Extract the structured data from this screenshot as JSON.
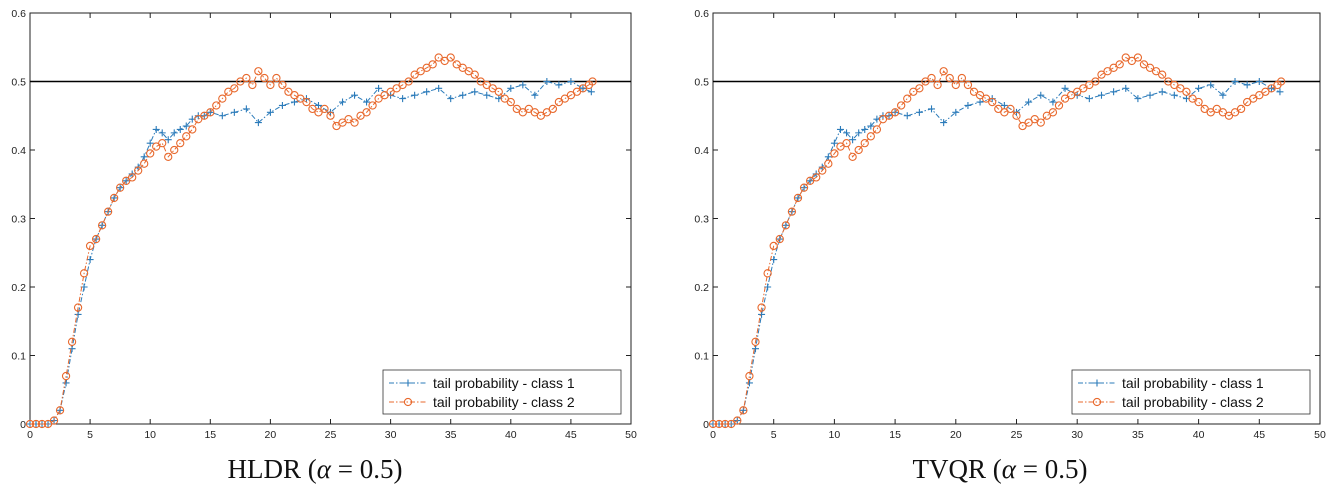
{
  "colors": {
    "class1": "#2b7bba",
    "class2": "#e8682c",
    "reference": "#000000",
    "axis": "#222222"
  },
  "chart_data": [
    {
      "type": "line",
      "caption": {
        "prefix": "HLDR (",
        "symbol": "α",
        "suffix": " = 0.5)"
      },
      "xlim": [
        0,
        50
      ],
      "ylim": [
        0,
        0.6
      ],
      "xticks": [
        "0",
        "5",
        "10",
        "15",
        "20",
        "25",
        "30",
        "35",
        "40",
        "45",
        "50"
      ],
      "yticks": [
        "0",
        "0.1",
        "0.2",
        "0.3",
        "0.4",
        "0.5",
        "0.6"
      ],
      "reference_line": 0.5,
      "legend_position": "bottom-right",
      "series": [
        {
          "name": "tail probability - class 1",
          "marker": "plus",
          "x": [
            0,
            0.5,
            1,
            1.5,
            2,
            2.5,
            3,
            3.5,
            4,
            4.5,
            5,
            5.5,
            6,
            6.5,
            7,
            7.5,
            8,
            8.5,
            9,
            9.5,
            10,
            10.5,
            11,
            11.5,
            12,
            12.5,
            13,
            13.5,
            14,
            14.5,
            15,
            16,
            17,
            18,
            19,
            20,
            21,
            22,
            23,
            24,
            25,
            26,
            27,
            28,
            29,
            30,
            31,
            32,
            33,
            34,
            35,
            36,
            37,
            38,
            39,
            40,
            41,
            42,
            43,
            44,
            45,
            46,
            46.7
          ],
          "y": [
            0,
            0,
            0,
            0,
            0.005,
            0.02,
            0.06,
            0.11,
            0.16,
            0.2,
            0.24,
            0.27,
            0.29,
            0.31,
            0.33,
            0.345,
            0.355,
            0.365,
            0.375,
            0.39,
            0.41,
            0.43,
            0.425,
            0.415,
            0.425,
            0.43,
            0.435,
            0.445,
            0.45,
            0.45,
            0.455,
            0.45,
            0.455,
            0.46,
            0.44,
            0.455,
            0.465,
            0.47,
            0.475,
            0.465,
            0.455,
            0.47,
            0.48,
            0.47,
            0.49,
            0.48,
            0.475,
            0.48,
            0.485,
            0.49,
            0.475,
            0.48,
            0.485,
            0.48,
            0.475,
            0.49,
            0.495,
            0.48,
            0.5,
            0.495,
            0.5,
            0.49,
            0.485
          ]
        },
        {
          "name": "tail probability - class 2",
          "marker": "circle",
          "x": [
            0,
            0.5,
            1,
            1.5,
            2,
            2.5,
            3,
            3.5,
            4,
            4.5,
            5,
            5.5,
            6,
            6.5,
            7,
            7.5,
            8,
            8.5,
            9,
            9.5,
            10,
            10.5,
            11,
            11.5,
            12,
            12.5,
            13,
            13.5,
            14,
            14.5,
            15,
            15.5,
            16,
            16.5,
            17,
            17.5,
            18,
            18.5,
            19,
            19.5,
            20,
            20.5,
            21,
            21.5,
            22,
            22.5,
            23,
            23.5,
            24,
            24.5,
            25,
            25.5,
            26,
            26.5,
            27,
            27.5,
            28,
            28.5,
            29,
            29.5,
            30,
            30.5,
            31,
            31.5,
            32,
            32.5,
            33,
            33.5,
            34,
            34.5,
            35,
            35.5,
            36,
            36.5,
            37,
            37.5,
            38,
            38.5,
            39,
            39.5,
            40,
            40.5,
            41,
            41.5,
            42,
            42.5,
            43,
            43.5,
            44,
            44.5,
            45,
            45.5,
            46,
            46.5,
            46.8
          ],
          "y": [
            0,
            0,
            0,
            0,
            0.005,
            0.02,
            0.07,
            0.12,
            0.17,
            0.22,
            0.26,
            0.27,
            0.29,
            0.31,
            0.33,
            0.345,
            0.355,
            0.36,
            0.37,
            0.38,
            0.395,
            0.405,
            0.41,
            0.39,
            0.4,
            0.41,
            0.42,
            0.43,
            0.445,
            0.45,
            0.455,
            0.465,
            0.475,
            0.485,
            0.49,
            0.5,
            0.505,
            0.495,
            0.515,
            0.505,
            0.495,
            0.505,
            0.495,
            0.485,
            0.48,
            0.475,
            0.47,
            0.46,
            0.455,
            0.46,
            0.45,
            0.435,
            0.44,
            0.445,
            0.44,
            0.45,
            0.455,
            0.465,
            0.475,
            0.48,
            0.485,
            0.49,
            0.495,
            0.5,
            0.51,
            0.515,
            0.52,
            0.525,
            0.535,
            0.53,
            0.535,
            0.525,
            0.52,
            0.515,
            0.51,
            0.5,
            0.495,
            0.49,
            0.485,
            0.475,
            0.47,
            0.46,
            0.455,
            0.46,
            0.455,
            0.45,
            0.455,
            0.46,
            0.47,
            0.475,
            0.48,
            0.485,
            0.49,
            0.495,
            0.5
          ]
        }
      ]
    },
    {
      "type": "line",
      "caption": {
        "prefix": "TVQR (",
        "symbol": "α",
        "suffix": " = 0.5)"
      },
      "xlim": [
        0,
        50
      ],
      "ylim": [
        0,
        0.6
      ],
      "xticks": [
        "0",
        "5",
        "10",
        "15",
        "20",
        "25",
        "30",
        "35",
        "40",
        "45",
        "50"
      ],
      "yticks": [
        "0",
        "0.1",
        "0.2",
        "0.3",
        "0.4",
        "0.5",
        "0.6"
      ],
      "reference_line": 0.5,
      "legend_position": "bottom-right",
      "series": [
        {
          "name": "tail probability - class 1",
          "marker": "plus",
          "x": [
            0,
            0.5,
            1,
            1.5,
            2,
            2.5,
            3,
            3.5,
            4,
            4.5,
            5,
            5.5,
            6,
            6.5,
            7,
            7.5,
            8,
            8.5,
            9,
            9.5,
            10,
            10.5,
            11,
            11.5,
            12,
            12.5,
            13,
            13.5,
            14,
            14.5,
            15,
            16,
            17,
            18,
            19,
            20,
            21,
            22,
            23,
            24,
            25,
            26,
            27,
            28,
            29,
            30,
            31,
            32,
            33,
            34,
            35,
            36,
            37,
            38,
            39,
            40,
            41,
            42,
            43,
            44,
            45,
            46,
            46.7
          ],
          "y": [
            0,
            0,
            0,
            0,
            0.005,
            0.02,
            0.06,
            0.11,
            0.16,
            0.2,
            0.24,
            0.27,
            0.29,
            0.31,
            0.33,
            0.345,
            0.355,
            0.365,
            0.375,
            0.39,
            0.41,
            0.43,
            0.425,
            0.415,
            0.425,
            0.43,
            0.435,
            0.445,
            0.45,
            0.45,
            0.455,
            0.45,
            0.455,
            0.46,
            0.44,
            0.455,
            0.465,
            0.47,
            0.475,
            0.465,
            0.455,
            0.47,
            0.48,
            0.47,
            0.49,
            0.48,
            0.475,
            0.48,
            0.485,
            0.49,
            0.475,
            0.48,
            0.485,
            0.48,
            0.475,
            0.49,
            0.495,
            0.48,
            0.5,
            0.495,
            0.5,
            0.49,
            0.485
          ]
        },
        {
          "name": "tail probability - class 2",
          "marker": "circle",
          "x": [
            0,
            0.5,
            1,
            1.5,
            2,
            2.5,
            3,
            3.5,
            4,
            4.5,
            5,
            5.5,
            6,
            6.5,
            7,
            7.5,
            8,
            8.5,
            9,
            9.5,
            10,
            10.5,
            11,
            11.5,
            12,
            12.5,
            13,
            13.5,
            14,
            14.5,
            15,
            15.5,
            16,
            16.5,
            17,
            17.5,
            18,
            18.5,
            19,
            19.5,
            20,
            20.5,
            21,
            21.5,
            22,
            22.5,
            23,
            23.5,
            24,
            24.5,
            25,
            25.5,
            26,
            26.5,
            27,
            27.5,
            28,
            28.5,
            29,
            29.5,
            30,
            30.5,
            31,
            31.5,
            32,
            32.5,
            33,
            33.5,
            34,
            34.5,
            35,
            35.5,
            36,
            36.5,
            37,
            37.5,
            38,
            38.5,
            39,
            39.5,
            40,
            40.5,
            41,
            41.5,
            42,
            42.5,
            43,
            43.5,
            44,
            44.5,
            45,
            45.5,
            46,
            46.5,
            46.8
          ],
          "y": [
            0,
            0,
            0,
            0,
            0.005,
            0.02,
            0.07,
            0.12,
            0.17,
            0.22,
            0.26,
            0.27,
            0.29,
            0.31,
            0.33,
            0.345,
            0.355,
            0.36,
            0.37,
            0.38,
            0.395,
            0.405,
            0.41,
            0.39,
            0.4,
            0.41,
            0.42,
            0.43,
            0.445,
            0.45,
            0.455,
            0.465,
            0.475,
            0.485,
            0.49,
            0.5,
            0.505,
            0.495,
            0.515,
            0.505,
            0.495,
            0.505,
            0.495,
            0.485,
            0.48,
            0.475,
            0.47,
            0.46,
            0.455,
            0.46,
            0.45,
            0.435,
            0.44,
            0.445,
            0.44,
            0.45,
            0.455,
            0.465,
            0.475,
            0.48,
            0.485,
            0.49,
            0.495,
            0.5,
            0.51,
            0.515,
            0.52,
            0.525,
            0.535,
            0.53,
            0.535,
            0.525,
            0.52,
            0.515,
            0.51,
            0.5,
            0.495,
            0.49,
            0.485,
            0.475,
            0.47,
            0.46,
            0.455,
            0.46,
            0.455,
            0.45,
            0.455,
            0.46,
            0.47,
            0.475,
            0.48,
            0.485,
            0.49,
            0.495,
            0.5
          ]
        }
      ]
    }
  ]
}
